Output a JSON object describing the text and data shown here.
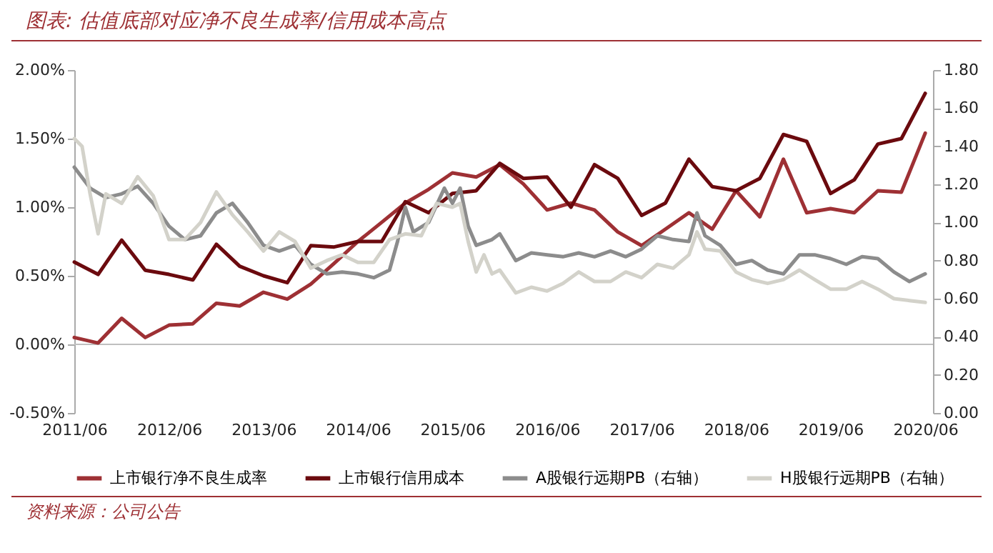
{
  "chart_data": {
    "type": "line",
    "title": "图表: 估值底部对应净不良生成率/信用成本高点",
    "annotations": [
      "资料来源：公司公告"
    ],
    "x": [
      "2011-06",
      "2011-09",
      "2011-12",
      "2012-03",
      "2012-06",
      "2012-09",
      "2012-12",
      "2013-03",
      "2013-06",
      "2013-09",
      "2013-12",
      "2014-03",
      "2014-06",
      "2014-09",
      "2014-12",
      "2015-03",
      "2015-06",
      "2015-09",
      "2015-12",
      "2016-03",
      "2016-06",
      "2016-09",
      "2016-12",
      "2017-03",
      "2017-06",
      "2017-09",
      "2017-12",
      "2018-03",
      "2018-06",
      "2018-09",
      "2018-12",
      "2019-03",
      "2019-06",
      "2019-09",
      "2019-12",
      "2020-03",
      "2020-06"
    ],
    "series": [
      {
        "name": "上市银行净不良生成率",
        "color": "#9e3034",
        "values": [
          0.05,
          0.01,
          0.19,
          0.05,
          0.14,
          0.15,
          0.3,
          0.28,
          0.38,
          0.33,
          0.44,
          0.59,
          0.75,
          0.89,
          1.03,
          1.13,
          1.25,
          1.22,
          1.31,
          1.17,
          0.98,
          1.03,
          0.98,
          0.82,
          0.72,
          0.84,
          0.96,
          0.84,
          1.12,
          0.93,
          1.35,
          0.96,
          0.99,
          0.96,
          1.12,
          1.11,
          1.54
        ]
      },
      {
        "name": "上市银行信用成本",
        "color": "#6b0a0e",
        "values": [
          0.6,
          0.51,
          0.76,
          0.54,
          0.51,
          0.47,
          0.73,
          0.57,
          0.5,
          0.45,
          0.72,
          0.71,
          0.75,
          0.75,
          1.04,
          0.96,
          1.1,
          1.12,
          1.32,
          1.21,
          1.22,
          1.0,
          1.31,
          1.21,
          0.94,
          1.03,
          1.35,
          1.15,
          1.12,
          1.21,
          1.53,
          1.48,
          1.1,
          1.2,
          1.46,
          1.5,
          1.83
        ]
      },
      {
        "name": "A股银行远期PB（右轴）",
        "color": "#8c8c8c",
        "axis": "y2",
        "x": [
          "2011-06",
          "2011-08",
          "2011-10",
          "2011-12",
          "2012-02",
          "2012-04",
          "2012-06",
          "2012-08",
          "2012-10",
          "2012-12",
          "2013-02",
          "2013-04",
          "2013-06",
          "2013-08",
          "2013-10",
          "2013-12",
          "2014-02",
          "2014-04",
          "2014-06",
          "2014-08",
          "2014-10",
          "2014-11",
          "2014-12",
          "2015-01",
          "2015-03",
          "2015-05",
          "2015-06",
          "2015-07",
          "2015-08",
          "2015-09",
          "2015-11",
          "2015-12",
          "2016-02",
          "2016-04",
          "2016-06",
          "2016-08",
          "2016-10",
          "2016-12",
          "2017-02",
          "2017-04",
          "2017-06",
          "2017-08",
          "2017-10",
          "2017-12",
          "2018-01",
          "2018-02",
          "2018-04",
          "2018-06",
          "2018-08",
          "2018-10",
          "2018-12",
          "2019-02",
          "2019-04",
          "2019-06",
          "2019-08",
          "2019-10",
          "2019-12",
          "2020-02",
          "2020-04",
          "2020-06"
        ],
        "values": [
          1.29,
          1.18,
          1.13,
          1.15,
          1.19,
          1.1,
          0.98,
          0.91,
          0.93,
          1.05,
          1.1,
          1.0,
          0.88,
          0.85,
          0.88,
          0.78,
          0.73,
          0.74,
          0.73,
          0.71,
          0.75,
          0.9,
          1.08,
          0.95,
          1.0,
          1.18,
          1.1,
          1.18,
          0.98,
          0.88,
          0.91,
          0.94,
          0.8,
          0.84,
          0.83,
          0.82,
          0.84,
          0.82,
          0.85,
          0.82,
          0.86,
          0.93,
          0.91,
          0.9,
          1.05,
          0.93,
          0.88,
          0.78,
          0.8,
          0.75,
          0.73,
          0.83,
          0.83,
          0.81,
          0.78,
          0.82,
          0.81,
          0.74,
          0.69,
          0.73
        ]
      },
      {
        "name": "H股银行远期PB（右轴）",
        "color": "#d3d2ca",
        "axis": "y2",
        "x": [
          "2011-06",
          "2011-07",
          "2011-08",
          "2011-09",
          "2011-10",
          "2011-12",
          "2012-02",
          "2012-04",
          "2012-06",
          "2012-08",
          "2012-10",
          "2012-12",
          "2013-02",
          "2013-04",
          "2013-06",
          "2013-08",
          "2013-10",
          "2013-12",
          "2014-02",
          "2014-04",
          "2014-06",
          "2014-08",
          "2014-10",
          "2014-12",
          "2015-02",
          "2015-04",
          "2015-06",
          "2015-07",
          "2015-08",
          "2015-09",
          "2015-10",
          "2015-11",
          "2015-12",
          "2016-02",
          "2016-04",
          "2016-06",
          "2016-08",
          "2016-10",
          "2016-12",
          "2017-02",
          "2017-04",
          "2017-06",
          "2017-08",
          "2017-10",
          "2017-12",
          "2018-01",
          "2018-02",
          "2018-04",
          "2018-06",
          "2018-08",
          "2018-10",
          "2018-12",
          "2019-02",
          "2019-04",
          "2019-06",
          "2019-08",
          "2019-10",
          "2019-12",
          "2020-02",
          "2020-04",
          "2020-06"
        ],
        "values": [
          1.44,
          1.4,
          1.15,
          0.94,
          1.15,
          1.1,
          1.24,
          1.14,
          0.91,
          0.91,
          1.0,
          1.16,
          1.04,
          0.95,
          0.85,
          0.95,
          0.9,
          0.76,
          0.8,
          0.83,
          0.79,
          0.79,
          0.91,
          0.94,
          0.93,
          1.1,
          1.08,
          1.1,
          0.9,
          0.74,
          0.83,
          0.73,
          0.75,
          0.63,
          0.66,
          0.64,
          0.68,
          0.74,
          0.69,
          0.69,
          0.74,
          0.71,
          0.78,
          0.76,
          0.83,
          0.95,
          0.86,
          0.85,
          0.74,
          0.7,
          0.68,
          0.7,
          0.75,
          0.7,
          0.65,
          0.65,
          0.69,
          0.65,
          0.6,
          0.59,
          0.58
        ]
      }
    ],
    "xlim": [
      "2011-06",
      "2020-07"
    ],
    "xticks": [
      {
        "value": "2011-06",
        "label": "2011/06"
      },
      {
        "value": "2012-06",
        "label": "2012/06"
      },
      {
        "value": "2013-06",
        "label": "2013/06"
      },
      {
        "value": "2014-06",
        "label": "2014/06"
      },
      {
        "value": "2015-06",
        "label": "2015/06"
      },
      {
        "value": "2016-06",
        "label": "2016/06"
      },
      {
        "value": "2017-06",
        "label": "2017/06"
      },
      {
        "value": "2018-06",
        "label": "2018/06"
      },
      {
        "value": "2019-06",
        "label": "2019/06"
      },
      {
        "value": "2020-06",
        "label": "2020/06"
      }
    ],
    "ylim": [
      -0.5,
      2
    ],
    "yticks": [
      {
        "value": -0.5,
        "label": "-0.50%"
      },
      {
        "value": 0,
        "label": "0.00%"
      },
      {
        "value": 0.5,
        "label": "0.50%"
      },
      {
        "value": 1,
        "label": "1.00%"
      },
      {
        "value": 1.5,
        "label": "1.50%"
      },
      {
        "value": 2,
        "label": "2.00%"
      }
    ],
    "y2lim": [
      0,
      1.8
    ],
    "y2ticks": [
      {
        "value": 0,
        "label": "0.00"
      },
      {
        "value": 0.2,
        "label": "0.20"
      },
      {
        "value": 0.4,
        "label": "0.40"
      },
      {
        "value": 0.6,
        "label": "0.60"
      },
      {
        "value": 0.8,
        "label": "0.80"
      },
      {
        "value": 1,
        "label": "1.00"
      },
      {
        "value": 1.2,
        "label": "1.20"
      },
      {
        "value": 1.4,
        "label": "1.40"
      },
      {
        "value": 1.6,
        "label": "1.60"
      },
      {
        "value": 1.8,
        "label": "1.80"
      }
    ],
    "ref_lines": [
      {
        "axis": "y",
        "value": 0,
        "color": "#bfbfbf"
      }
    ],
    "legend": "bottom"
  }
}
